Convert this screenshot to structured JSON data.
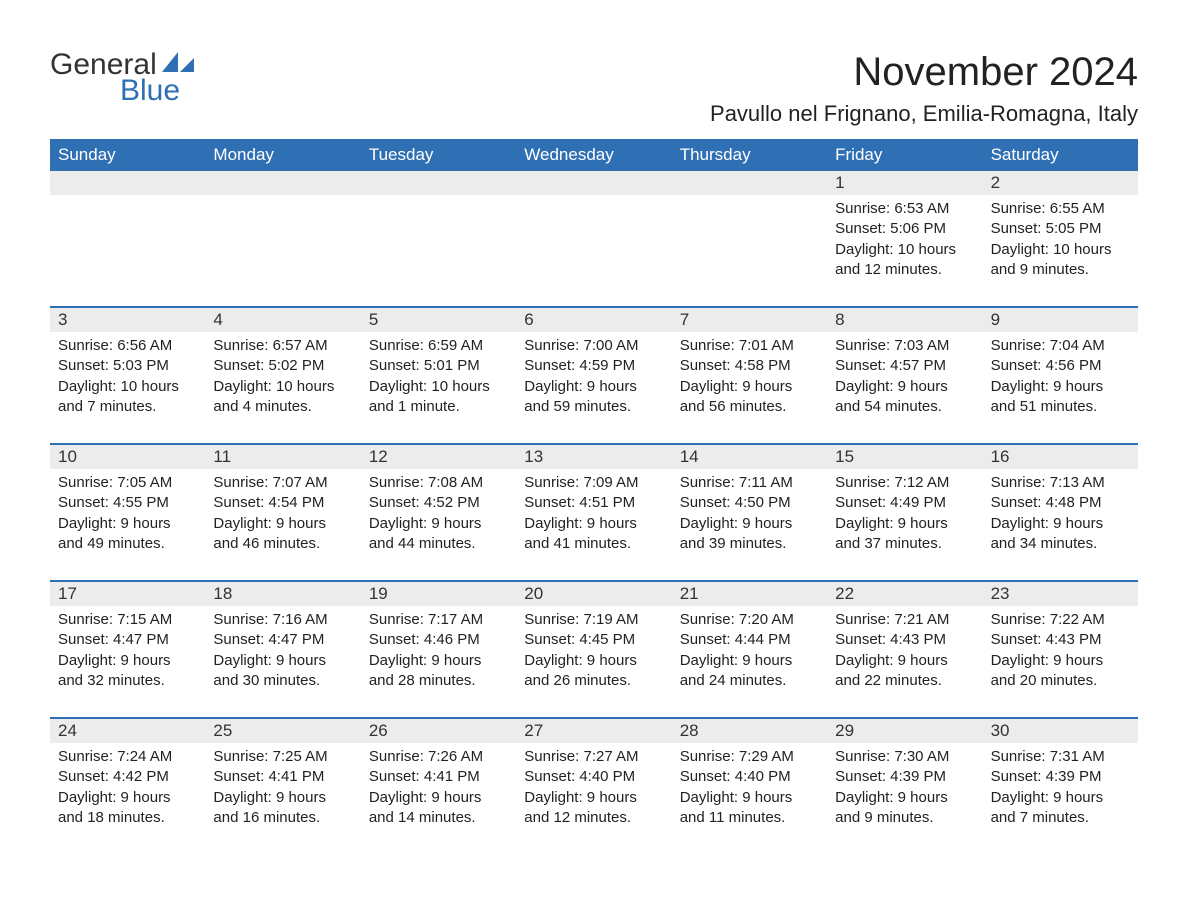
{
  "logo": {
    "text1": "General",
    "text2": "Blue",
    "accent_color": "#2f6fb4"
  },
  "title": "November 2024",
  "location": "Pavullo nel Frignano, Emilia-Romagna, Italy",
  "colors": {
    "header_bg": "#2f6fb4",
    "header_text": "#ffffff",
    "daynum_bg": "#ececec",
    "divider": "#2f6fb4",
    "body_text": "#222222",
    "page_bg": "#ffffff"
  },
  "weekdays": [
    "Sunday",
    "Monday",
    "Tuesday",
    "Wednesday",
    "Thursday",
    "Friday",
    "Saturday"
  ],
  "weeks": [
    {
      "days": [
        null,
        null,
        null,
        null,
        null,
        {
          "n": "1",
          "sunrise": "6:53 AM",
          "sunset": "5:06 PM",
          "daylight": "10 hours and 12 minutes."
        },
        {
          "n": "2",
          "sunrise": "6:55 AM",
          "sunset": "5:05 PM",
          "daylight": "10 hours and 9 minutes."
        }
      ]
    },
    {
      "days": [
        {
          "n": "3",
          "sunrise": "6:56 AM",
          "sunset": "5:03 PM",
          "daylight": "10 hours and 7 minutes."
        },
        {
          "n": "4",
          "sunrise": "6:57 AM",
          "sunset": "5:02 PM",
          "daylight": "10 hours and 4 minutes."
        },
        {
          "n": "5",
          "sunrise": "6:59 AM",
          "sunset": "5:01 PM",
          "daylight": "10 hours and 1 minute."
        },
        {
          "n": "6",
          "sunrise": "7:00 AM",
          "sunset": "4:59 PM",
          "daylight": "9 hours and 59 minutes."
        },
        {
          "n": "7",
          "sunrise": "7:01 AM",
          "sunset": "4:58 PM",
          "daylight": "9 hours and 56 minutes."
        },
        {
          "n": "8",
          "sunrise": "7:03 AM",
          "sunset": "4:57 PM",
          "daylight": "9 hours and 54 minutes."
        },
        {
          "n": "9",
          "sunrise": "7:04 AM",
          "sunset": "4:56 PM",
          "daylight": "9 hours and 51 minutes."
        }
      ]
    },
    {
      "days": [
        {
          "n": "10",
          "sunrise": "7:05 AM",
          "sunset": "4:55 PM",
          "daylight": "9 hours and 49 minutes."
        },
        {
          "n": "11",
          "sunrise": "7:07 AM",
          "sunset": "4:54 PM",
          "daylight": "9 hours and 46 minutes."
        },
        {
          "n": "12",
          "sunrise": "7:08 AM",
          "sunset": "4:52 PM",
          "daylight": "9 hours and 44 minutes."
        },
        {
          "n": "13",
          "sunrise": "7:09 AM",
          "sunset": "4:51 PM",
          "daylight": "9 hours and 41 minutes."
        },
        {
          "n": "14",
          "sunrise": "7:11 AM",
          "sunset": "4:50 PM",
          "daylight": "9 hours and 39 minutes."
        },
        {
          "n": "15",
          "sunrise": "7:12 AM",
          "sunset": "4:49 PM",
          "daylight": "9 hours and 37 minutes."
        },
        {
          "n": "16",
          "sunrise": "7:13 AM",
          "sunset": "4:48 PM",
          "daylight": "9 hours and 34 minutes."
        }
      ]
    },
    {
      "days": [
        {
          "n": "17",
          "sunrise": "7:15 AM",
          "sunset": "4:47 PM",
          "daylight": "9 hours and 32 minutes."
        },
        {
          "n": "18",
          "sunrise": "7:16 AM",
          "sunset": "4:47 PM",
          "daylight": "9 hours and 30 minutes."
        },
        {
          "n": "19",
          "sunrise": "7:17 AM",
          "sunset": "4:46 PM",
          "daylight": "9 hours and 28 minutes."
        },
        {
          "n": "20",
          "sunrise": "7:19 AM",
          "sunset": "4:45 PM",
          "daylight": "9 hours and 26 minutes."
        },
        {
          "n": "21",
          "sunrise": "7:20 AM",
          "sunset": "4:44 PM",
          "daylight": "9 hours and 24 minutes."
        },
        {
          "n": "22",
          "sunrise": "7:21 AM",
          "sunset": "4:43 PM",
          "daylight": "9 hours and 22 minutes."
        },
        {
          "n": "23",
          "sunrise": "7:22 AM",
          "sunset": "4:43 PM",
          "daylight": "9 hours and 20 minutes."
        }
      ]
    },
    {
      "days": [
        {
          "n": "24",
          "sunrise": "7:24 AM",
          "sunset": "4:42 PM",
          "daylight": "9 hours and 18 minutes."
        },
        {
          "n": "25",
          "sunrise": "7:25 AM",
          "sunset": "4:41 PM",
          "daylight": "9 hours and 16 minutes."
        },
        {
          "n": "26",
          "sunrise": "7:26 AM",
          "sunset": "4:41 PM",
          "daylight": "9 hours and 14 minutes."
        },
        {
          "n": "27",
          "sunrise": "7:27 AM",
          "sunset": "4:40 PM",
          "daylight": "9 hours and 12 minutes."
        },
        {
          "n": "28",
          "sunrise": "7:29 AM",
          "sunset": "4:40 PM",
          "daylight": "9 hours and 11 minutes."
        },
        {
          "n": "29",
          "sunrise": "7:30 AM",
          "sunset": "4:39 PM",
          "daylight": "9 hours and 9 minutes."
        },
        {
          "n": "30",
          "sunrise": "7:31 AM",
          "sunset": "4:39 PM",
          "daylight": "9 hours and 7 minutes."
        }
      ]
    }
  ]
}
